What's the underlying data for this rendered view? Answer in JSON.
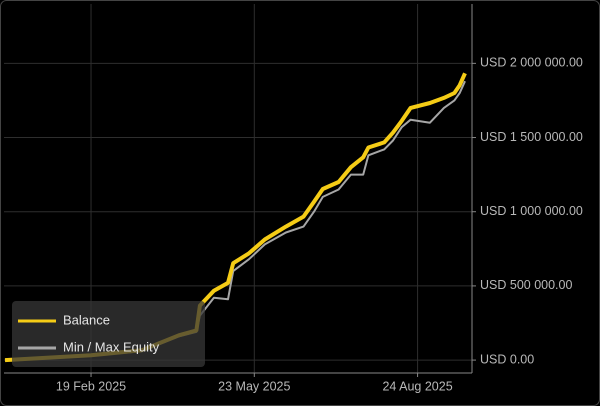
{
  "chart_data": {
    "type": "line",
    "x": [
      "2025-01-01",
      "2025-02-19",
      "2025-03-20",
      "2025-04-10",
      "2025-04-20",
      "2025-04-22",
      "2025-04-30",
      "2025-05-08",
      "2025-05-11",
      "2025-05-20",
      "2025-05-29",
      "2025-06-10",
      "2025-06-20",
      "2025-06-26",
      "2025-07-01",
      "2025-07-10",
      "2025-07-17",
      "2025-07-24",
      "2025-07-27",
      "2025-08-05",
      "2025-08-10",
      "2025-08-15",
      "2025-08-20",
      "2025-08-31",
      "2025-09-08",
      "2025-09-14",
      "2025-09-17",
      "2025-09-20"
    ],
    "series": [
      {
        "name": "Min / Max Equity",
        "color": "#a6a6a6",
        "values": [
          0,
          30000,
          60000,
          160000,
          190000,
          300000,
          420000,
          410000,
          600000,
          680000,
          780000,
          860000,
          900000,
          1000000,
          1100000,
          1150000,
          1250000,
          1250000,
          1380000,
          1420000,
          1480000,
          1570000,
          1620000,
          1600000,
          1700000,
          1750000,
          1800000,
          1880000
        ]
      },
      {
        "name": "Balance",
        "color": "#f5cc16",
        "values": [
          0,
          33000,
          67000,
          167000,
          200000,
          367000,
          467000,
          520000,
          653000,
          720000,
          813000,
          900000,
          967000,
          1067000,
          1153000,
          1200000,
          1300000,
          1367000,
          1433000,
          1467000,
          1533000,
          1613000,
          1700000,
          1733000,
          1767000,
          1800000,
          1853000,
          1933000
        ]
      }
    ],
    "xlim": [
      "2025-01-01",
      "2025-09-24"
    ],
    "xticks": [
      {
        "value": "2025-02-19",
        "label": "19 Feb 2025"
      },
      {
        "value": "2025-05-23",
        "label": "23 May 2025"
      },
      {
        "value": "2025-08-24",
        "label": "24 Aug 2025"
      }
    ],
    "ylim": [
      -87000,
      2400000
    ],
    "yticks": [
      {
        "value": 0,
        "label": "USD 0.00"
      },
      {
        "value": 500000,
        "label": "USD 500 000.00"
      },
      {
        "value": 1000000,
        "label": "USD 1 000 000.00"
      },
      {
        "value": 1500000,
        "label": "USD 1 500 000.00"
      },
      {
        "value": 2000000,
        "label": "USD 2 000 000.00"
      }
    ],
    "grid": true
  }
}
